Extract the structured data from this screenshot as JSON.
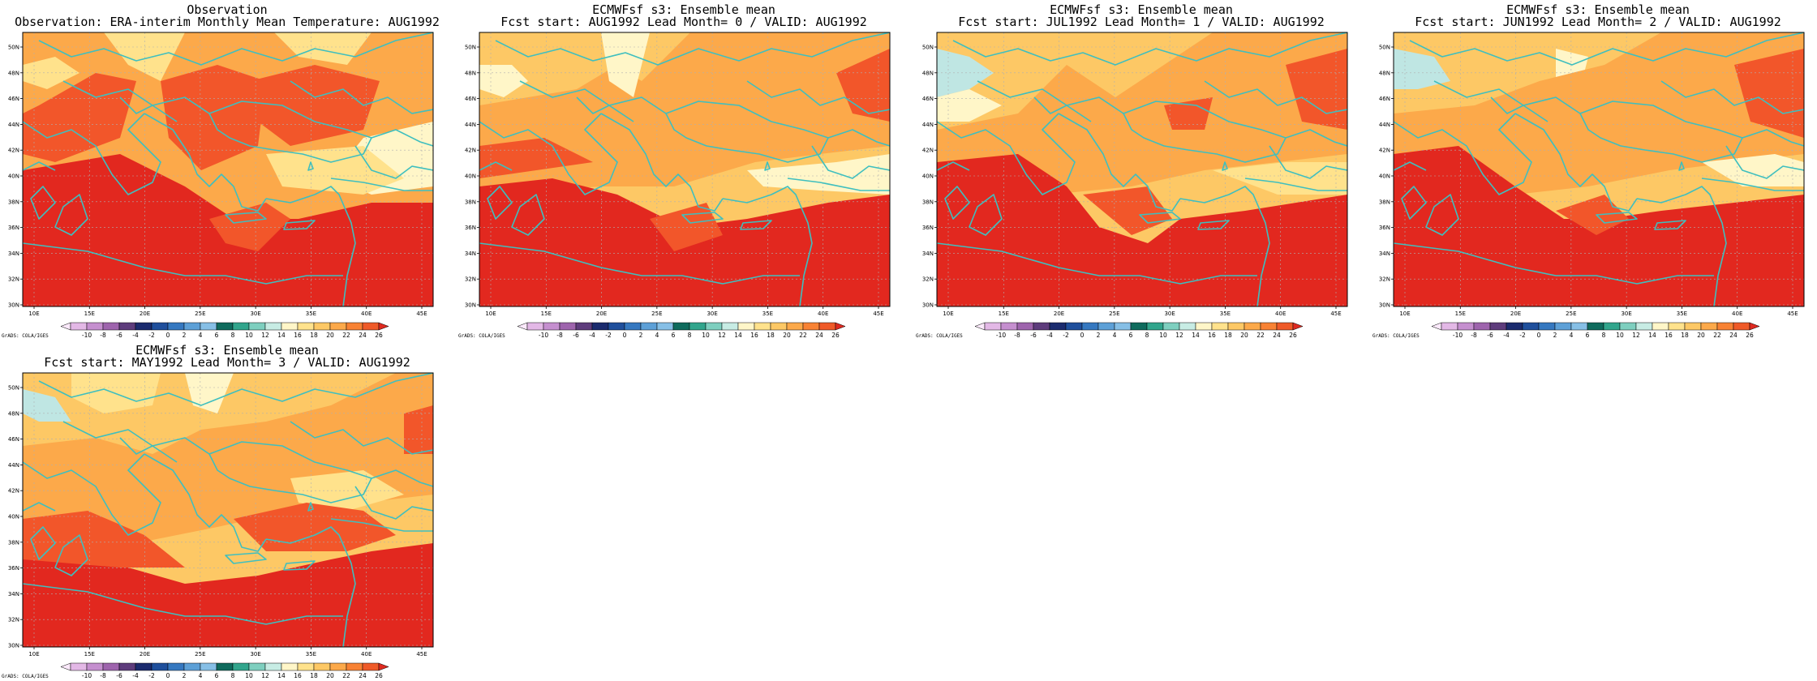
{
  "panels": [
    {
      "title_line1": "Observation",
      "title_line2": "Observation: ERA-interim Monthly Mean Temperature: AUG1992"
    },
    {
      "title_line1": "ECMWFsf s3: Ensemble mean",
      "title_line2": "Fcst start: AUG1992  Lead Month= 0 / VALID: AUG1992"
    },
    {
      "title_line1": "ECMWFsf s3: Ensemble mean",
      "title_line2": "Fcst start: JUL1992  Lead Month= 1 / VALID: AUG1992"
    },
    {
      "title_line1": "ECMWFsf s3: Ensemble mean",
      "title_line2": "Fcst start: JUN1992  Lead Month= 2 / VALID: AUG1992"
    },
    {
      "title_line1": "ECMWFsf s3: Ensemble mean",
      "title_line2": "Fcst start: MAY1992  Lead Month= 3 / VALID: AUG1992"
    }
  ],
  "map_axes": {
    "lon_labels": [
      "10E",
      "15E",
      "20E",
      "25E",
      "30E",
      "35E",
      "40E",
      "45E"
    ],
    "lat_labels": [
      "30N",
      "32N",
      "34N",
      "36N",
      "38N",
      "40N",
      "42N",
      "44N",
      "46N",
      "48N",
      "50N"
    ]
  },
  "colorbar": {
    "labels": [
      "-10",
      "-8",
      "-6",
      "-4",
      "-2",
      "0",
      "2",
      "4",
      "6",
      "8",
      "10",
      "12",
      "14",
      "16",
      "18",
      "20",
      "22",
      "24",
      "26"
    ],
    "colors": [
      "#fbe9fb",
      "#e3b8e6",
      "#c58fcf",
      "#9e64ad",
      "#5e3c7c",
      "#1b2b6e",
      "#1f4f9c",
      "#3578c0",
      "#5da0d7",
      "#86bfe6",
      "#0f6b5d",
      "#31a58c",
      "#7ecfbf",
      "#c7ece4",
      "#fff6c8",
      "#ffe28c",
      "#fdc865",
      "#fca94a",
      "#f88234",
      "#ef5a28",
      "#de2a20"
    ]
  },
  "credit": "GrADS: COLA/IGES",
  "colors": {
    "coast": "#3fbfbf",
    "grid": "#b0b0b0",
    "hot": "#e2281f",
    "warm": "#f2562a",
    "mid": "#fca94a",
    "mild": "#fdc865",
    "cool": "#ffe28c",
    "pale": "#fff6c8",
    "cold": "#bfe6e3"
  }
}
